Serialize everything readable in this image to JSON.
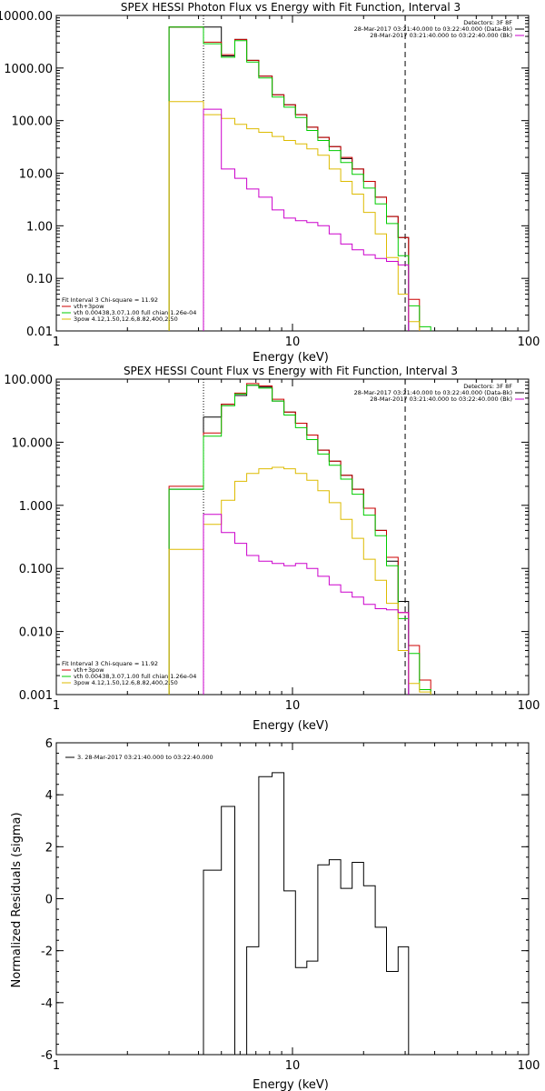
{
  "chart_data": [
    {
      "type": "line",
      "step": true,
      "title": "SPEX HESSI Photon Flux vs Energy with Fit Function, Interval 3",
      "xlabel": "Energy (keV)",
      "ylabel": "",
      "xscale": "log",
      "yscale": "log",
      "xlim": [
        1,
        100
      ],
      "ylim": [
        0.01,
        10000
      ],
      "xticks": [
        1,
        10,
        100
      ],
      "xtick_labels": [
        "1",
        "10",
        "100"
      ],
      "yticks": [
        0.01,
        0.1,
        1,
        10,
        100,
        1000,
        10000
      ],
      "ytick_labels": [
        "0.01",
        "0.10",
        "1.00",
        "10.00",
        "100.00",
        "1000.00",
        "10000.00"
      ],
      "vlines": [
        {
          "x": 4.2,
          "style": "dotted"
        },
        {
          "x": 30,
          "style": "dashed"
        }
      ],
      "bin_edges": [
        3,
        4.2,
        5,
        5.7,
        6.4,
        7.2,
        8.2,
        9.2,
        10.3,
        11.5,
        12.8,
        14.3,
        16,
        17.9,
        20,
        22.4,
        25,
        28,
        31,
        34.5,
        38.5
      ],
      "legend_top": {
        "position": "top-right",
        "entries": [
          {
            "label": "Detectors: 3F 8F",
            "color": null
          },
          {
            "label": "28-Mar-2017 03:21:40.000 to 03:22:40.000 (Data-Bk)",
            "color": "#000000"
          },
          {
            "label": "28-Mar-2017 03:21:40.000 to 03:22:40.000 (Bk)",
            "color": "#cc00cc"
          }
        ]
      },
      "legend_bottom": {
        "position": "bottom-left",
        "entries": [
          {
            "label": "Fit Interval 3   Chi-square = 11.92",
            "color": null
          },
          {
            "label": "vth+3pow",
            "color": "#cc0000"
          },
          {
            "label": "vth 0.00438,3.07,1.00  full chian 1.26e-04",
            "color": "#00cc00"
          },
          {
            "label": "3pow 4.12,1.50,12.6,8.82,400,2.50",
            "color": "#ddbb00"
          }
        ]
      },
      "series": [
        {
          "color": "#000000",
          "values": [
            6000,
            6000,
            1700,
            3500,
            1400,
            700,
            310,
            200,
            130,
            75,
            48,
            32,
            19,
            12,
            7,
            3.5,
            1.5,
            0.6,
            null,
            null
          ]
        },
        {
          "color": "#cc0000",
          "values": [
            6000,
            3100,
            1800,
            3500,
            1400,
            700,
            310,
            200,
            130,
            75,
            48,
            32,
            20,
            12,
            7,
            3.5,
            1.5,
            0.6,
            0.04,
            null
          ]
        },
        {
          "color": "#00cc00",
          "values": [
            6000,
            2900,
            1600,
            3300,
            1300,
            650,
            280,
            180,
            115,
            65,
            42,
            27,
            16,
            9.5,
            5.2,
            2.6,
            1.1,
            0.27,
            0.03,
            0.012
          ]
        },
        {
          "color": "#ddbb00",
          "values": [
            230,
            130,
            110,
            85,
            70,
            60,
            50,
            42,
            36,
            29,
            22,
            12,
            7,
            4,
            1.8,
            0.7,
            0.25,
            0.05,
            0.015,
            null
          ]
        },
        {
          "color": "#cc00cc",
          "values": [
            null,
            165,
            12,
            8,
            5,
            3.5,
            2,
            1.4,
            1.25,
            1.15,
            1,
            0.7,
            0.45,
            0.35,
            0.28,
            0.24,
            0.21,
            0.18,
            null,
            null
          ]
        }
      ]
    },
    {
      "type": "line",
      "step": true,
      "title": "SPEX HESSI Count Flux vs Energy with Fit Function, Interval 3",
      "xlabel": "Energy (keV)",
      "ylabel": "",
      "xscale": "log",
      "yscale": "log",
      "xlim": [
        1,
        100
      ],
      "ylim": [
        0.001,
        100
      ],
      "xticks": [
        1,
        10,
        100
      ],
      "xtick_labels": [
        "1",
        "10",
        "100"
      ],
      "yticks": [
        0.001,
        0.01,
        0.1,
        1,
        10,
        100
      ],
      "ytick_labels": [
        "0.001",
        "0.010",
        "0.100",
        "1.000",
        "10.000",
        "100.000"
      ],
      "vlines": [
        {
          "x": 4.2,
          "style": "dotted"
        },
        {
          "x": 30,
          "style": "dashed"
        }
      ],
      "bin_edges": [
        3,
        4.2,
        5,
        5.7,
        6.4,
        7.2,
        8.2,
        9.2,
        10.3,
        11.5,
        12.8,
        14.3,
        16,
        17.9,
        20,
        22.4,
        25,
        28,
        31,
        34.5,
        38.5
      ],
      "legend_top": {
        "position": "top-right",
        "entries": [
          {
            "label": "Detectors: 3F 8F",
            "color": null
          },
          {
            "label": "28-Mar-2017 03:21:40.000 to 03:22:40.000 (Data-Bk)",
            "color": "#000000"
          },
          {
            "label": "28-Mar-2017 03:21:40.000 to 03:22:40.000 (Bk)",
            "color": "#cc00cc"
          }
        ]
      },
      "legend_bottom": {
        "position": "bottom-left",
        "entries": [
          {
            "label": "Fit Interval 3   Chi-square = 11.92",
            "color": null
          },
          {
            "label": "vth+3pow",
            "color": "#cc0000"
          },
          {
            "label": "vth 0.00438,3.07,1.00  full chian 1.26e-04",
            "color": "#00cc00"
          },
          {
            "label": "3pow 4.12,1.50,12.6,8.82,400,2.50",
            "color": "#ddbb00"
          }
        ]
      },
      "series": [
        {
          "color": "#000000",
          "values": [
            1.8,
            25,
            40,
            55,
            80,
            75,
            45,
            30,
            20,
            13,
            7.5,
            5,
            3,
            1.8,
            0.9,
            0.4,
            0.13,
            0.03,
            null,
            null
          ]
        },
        {
          "color": "#cc0000",
          "values": [
            2,
            14,
            40,
            60,
            85,
            78,
            48,
            30,
            20,
            13,
            7.5,
            5,
            3,
            1.8,
            0.9,
            0.4,
            0.15,
            0.02,
            0.006,
            0.0017
          ]
        },
        {
          "color": "#00cc00",
          "values": [
            1.8,
            12.5,
            38,
            58,
            80,
            72,
            45,
            27,
            17,
            11,
            6.5,
            4.3,
            2.6,
            1.5,
            0.7,
            0.33,
            0.11,
            0.016,
            0.0045,
            0.0012
          ]
        },
        {
          "color": "#ddbb00",
          "values": [
            0.2,
            0.5,
            1.2,
            2.4,
            3.2,
            3.8,
            4,
            3.8,
            3.2,
            2.5,
            1.7,
            1.1,
            0.6,
            0.3,
            0.14,
            0.065,
            0.028,
            0.005,
            0.0015,
            0.0011
          ]
        },
        {
          "color": "#cc00cc",
          "values": [
            null,
            0.72,
            0.37,
            0.25,
            0.16,
            0.13,
            0.12,
            0.11,
            0.12,
            0.1,
            0.075,
            0.055,
            0.042,
            0.035,
            0.027,
            0.023,
            0.022,
            0.02,
            null,
            null
          ]
        }
      ]
    },
    {
      "type": "line",
      "step": true,
      "title": "",
      "xlabel": "Energy (keV)",
      "ylabel": "Normalized Residuals (sigma)",
      "xscale": "log",
      "yscale": "linear",
      "xlim": [
        1,
        100
      ],
      "ylim": [
        -6,
        6
      ],
      "xticks": [
        1,
        10,
        100
      ],
      "xtick_labels": [
        "1",
        "10",
        "100"
      ],
      "yticks": [
        -6,
        -4,
        -2,
        0,
        2,
        4,
        6
      ],
      "ytick_labels": [
        "-6",
        "-4",
        "-2",
        "0",
        "2",
        "4",
        "6"
      ],
      "legend": {
        "position": "top-left",
        "entries": [
          {
            "label": "3. 28-Mar-2017 03:21:40.000 to 03:22:40.000",
            "color": "#000000"
          }
        ]
      },
      "bin_edges": [
        4.2,
        5,
        5.7,
        6.4,
        7.2,
        8.2,
        9.2,
        10.3,
        11.5,
        12.8,
        14.3,
        16,
        17.9,
        20,
        22.4,
        25,
        28,
        31
      ],
      "series": [
        {
          "color": "#000000",
          "values": [
            1.1,
            3.55,
            -6,
            -1.85,
            4.7,
            4.85,
            0.3,
            -2.65,
            -2.4,
            1.3,
            1.5,
            0.4,
            1.4,
            0.5,
            -1.1,
            -2.8,
            -1.85
          ]
        }
      ]
    }
  ]
}
